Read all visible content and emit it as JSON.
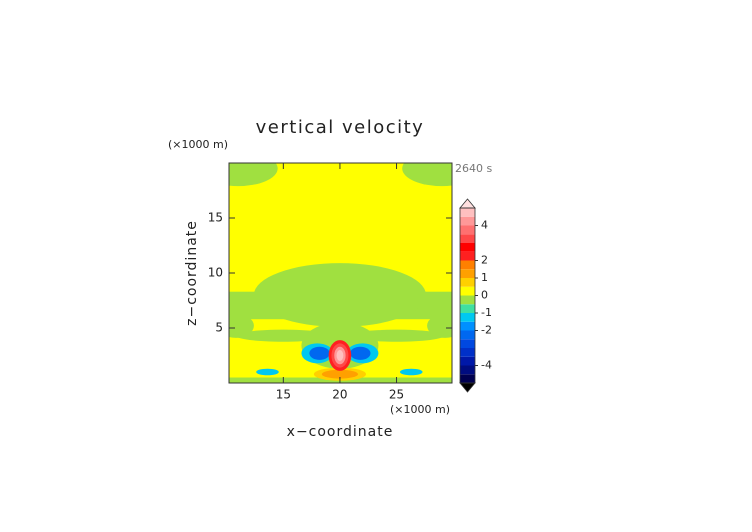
{
  "chart_data": {
    "type": "contour",
    "title": "vertical velocity",
    "x_label": "x−coordinate",
    "y_label": "z−coordinate",
    "x_unit": "(×1000 m)",
    "y_unit": "(×1000 m)",
    "time_label": "2640 s",
    "xlim": [
      10.2,
      29.9
    ],
    "ylim": [
      0,
      20
    ],
    "xticks": [
      15,
      20,
      25
    ],
    "yticks": [
      5,
      10,
      15
    ],
    "background": 0.25,
    "patches": [
      {
        "shape": "rect",
        "x": 20,
        "z": 7.05,
        "rx": 11,
        "rz": 1.25,
        "value": -0.25
      },
      {
        "shape": "ellipse",
        "x": 20,
        "z": 8,
        "rx": 7.6,
        "rz": 2.9,
        "value": -0.25
      },
      {
        "shape": "ellipse",
        "x": 11,
        "z": 19.5,
        "rx": 3.5,
        "rz": 1.6,
        "value": -0.25
      },
      {
        "shape": "ellipse",
        "x": 29,
        "z": 19.5,
        "rx": 3.5,
        "rz": 1.6,
        "value": -0.25
      },
      {
        "shape": "ellipse",
        "x": 10.8,
        "z": 5.2,
        "rx": 1.6,
        "rz": 1.1,
        "value": -0.25
      },
      {
        "shape": "ellipse",
        "x": 29.3,
        "z": 5.2,
        "rx": 1.6,
        "rz": 1.1,
        "value": -0.25
      },
      {
        "shape": "ellipse",
        "x": 15,
        "z": 4.3,
        "rx": 4.2,
        "rz": 0.55,
        "value": -0.25
      },
      {
        "shape": "ellipse",
        "x": 25,
        "z": 4.3,
        "rx": 4.2,
        "rz": 0.55,
        "value": -0.25
      },
      {
        "shape": "ellipse",
        "x": 20,
        "z": 3.4,
        "rx": 3.4,
        "rz": 2.1,
        "value": -0.25
      },
      {
        "shape": "rect",
        "x": 20,
        "z": 0.2,
        "rx": 11,
        "rz": 0.3,
        "value": -0.25
      },
      {
        "shape": "ellipse",
        "x": 13.6,
        "z": 1,
        "rx": 1,
        "rz": 0.3,
        "value": -1.2
      },
      {
        "shape": "ellipse",
        "x": 26.3,
        "z": 1,
        "rx": 1,
        "rz": 0.3,
        "value": -1.2
      },
      {
        "shape": "ellipse",
        "x": 20,
        "z": 0.8,
        "rx": 2.3,
        "rz": 0.6,
        "value": 0.75
      },
      {
        "shape": "ellipse",
        "x": 20,
        "z": 0.8,
        "rx": 1.6,
        "rz": 0.4,
        "value": 1.2
      },
      {
        "shape": "ellipse",
        "x": 18,
        "z": 2.7,
        "rx": 1.4,
        "rz": 0.9,
        "value": -1.2
      },
      {
        "shape": "ellipse",
        "x": 22,
        "z": 2.7,
        "rx": 1.4,
        "rz": 0.9,
        "value": -1.2
      },
      {
        "shape": "ellipse",
        "x": 18.2,
        "z": 2.7,
        "rx": 0.9,
        "rz": 0.6,
        "value": -2.2
      },
      {
        "shape": "ellipse",
        "x": 21.8,
        "z": 2.7,
        "rx": 0.9,
        "rz": 0.6,
        "value": -2.2
      },
      {
        "shape": "ellipse",
        "x": 20,
        "z": 2.5,
        "rx": 1,
        "rz": 1.4,
        "value": 2.2
      },
      {
        "shape": "ellipse",
        "x": 20,
        "z": 2.5,
        "rx": 0.75,
        "rz": 1.1,
        "value": 3.2
      },
      {
        "shape": "ellipse",
        "x": 20,
        "z": 2.5,
        "rx": 0.5,
        "rz": 0.8,
        "value": 4.2
      },
      {
        "shape": "ellipse",
        "x": 20,
        "z": 2.5,
        "rx": 0.3,
        "rz": 0.5,
        "value": 4.7
      }
    ],
    "levels": [
      -5,
      -4.5,
      -4,
      -3.5,
      -3,
      -2.5,
      -2,
      -1.5,
      -1,
      -0.5,
      0,
      0.5,
      1,
      1.5,
      2,
      2.5,
      3,
      3.5,
      4,
      4.5,
      5
    ],
    "colors": [
      "#000050",
      "#000c80",
      "#0018a8",
      "#0030c8",
      "#0048e0",
      "#0068f0",
      "#0090ff",
      "#00c8f0",
      "#40e0a0",
      "#a0e040",
      "#ffff00",
      "#ffd000",
      "#ffa000",
      "#ff8000",
      "#ff2020",
      "#ff0000",
      "#ff4848",
      "#ff7070",
      "#ff9898",
      "#ffc0c0"
    ],
    "over_color": "#ffe0e0",
    "under_color": "#000000",
    "cbar_ticks": [
      -4,
      -2,
      -1,
      0,
      1,
      2,
      4
    ]
  }
}
